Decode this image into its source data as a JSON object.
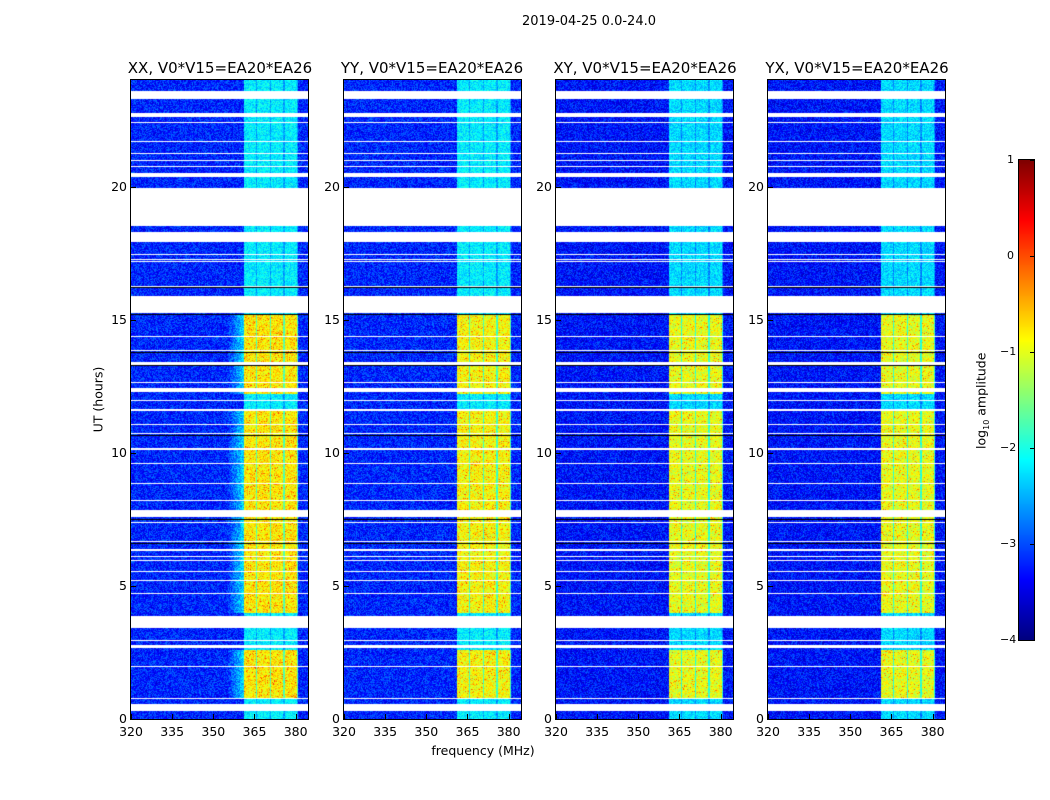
{
  "suptitle": "2019-04-25 0.0-24.0",
  "xlabel": "frequency (MHz)",
  "ylabel": "UT (hours)",
  "colorbar": {
    "label": "log",
    "label_sub": "10",
    "label_rest": " amplitude",
    "min": -4,
    "max": 1,
    "ticks": [
      "1",
      "0",
      "−1",
      "−2",
      "−3",
      "−4"
    ],
    "tick_values": [
      1,
      0,
      -1,
      -2,
      -3,
      -4
    ],
    "colormap": "jet"
  },
  "chart_data": [
    {
      "type": "heatmap",
      "title": "XX, V0*V15=EA20*EA26",
      "polarization": "XX",
      "xlim": [
        320,
        384.5
      ],
      "ylim": [
        0,
        24
      ],
      "xticks": [
        "320",
        "335",
        "350",
        "365",
        "380"
      ],
      "xtick_values": [
        320,
        335,
        350,
        365,
        380
      ],
      "yticks": [
        "0",
        "5",
        "10",
        "15",
        "20"
      ],
      "ytick_values": [
        0,
        5,
        10,
        15,
        20
      ],
      "background_level": -3.2,
      "strong_level": -0.8,
      "weak_level": -2.2,
      "ramp": true
    },
    {
      "type": "heatmap",
      "title": "YY, V0*V15=EA20*EA26",
      "polarization": "YY",
      "xlim": [
        320,
        384.5
      ],
      "ylim": [
        0,
        24
      ],
      "xticks": [
        "320",
        "335",
        "350",
        "365",
        "380"
      ],
      "xtick_values": [
        320,
        335,
        350,
        365,
        380
      ],
      "yticks": [
        "0",
        "5",
        "10",
        "15",
        "20"
      ],
      "ytick_values": [
        0,
        5,
        10,
        15,
        20
      ],
      "background_level": -3.2,
      "strong_level": -0.9,
      "weak_level": -2.2,
      "ramp": false
    },
    {
      "type": "heatmap",
      "title": "XY, V0*V15=EA20*EA26",
      "polarization": "XY",
      "xlim": [
        320,
        384.5
      ],
      "ylim": [
        0,
        24
      ],
      "xticks": [
        "320",
        "335",
        "350",
        "365",
        "380"
      ],
      "xtick_values": [
        320,
        335,
        350,
        365,
        380
      ],
      "yticks": [
        "0",
        "5",
        "10",
        "15",
        "20"
      ],
      "ytick_values": [
        0,
        5,
        10,
        15,
        20
      ],
      "background_level": -3.3,
      "strong_level": -1.0,
      "weak_level": -2.3,
      "ramp": false
    },
    {
      "type": "heatmap",
      "title": "YX, V0*V15=EA20*EA26",
      "polarization": "YX",
      "xlim": [
        320,
        384.5
      ],
      "ylim": [
        0,
        24
      ],
      "xticks": [
        "320",
        "335",
        "350",
        "365",
        "380"
      ],
      "xtick_values": [
        320,
        335,
        350,
        365,
        380
      ],
      "yticks": [
        "0",
        "5",
        "10",
        "15",
        "20"
      ],
      "ytick_values": [
        0,
        5,
        10,
        15,
        20
      ],
      "background_level": -3.3,
      "strong_level": -1.0,
      "weak_level": -2.3,
      "ramp": false
    }
  ],
  "shared": {
    "bright_subbands_mhz": [
      [
        361,
        365.5
      ],
      [
        366,
        370.5
      ],
      [
        371,
        375.5
      ],
      [
        376,
        380.5
      ]
    ],
    "strong_ut_ranges": [
      [
        0.8,
        2.6
      ],
      [
        4.0,
        11.6
      ],
      [
        12.2,
        15.2
      ]
    ],
    "flagged_ut_ranges": [
      [
        0.3,
        0.55
      ],
      [
        2.65,
        2.75
      ],
      [
        3.4,
        3.85
      ],
      [
        7.6,
        7.85
      ],
      [
        12.3,
        12.45
      ],
      [
        13.3,
        13.4
      ],
      [
        15.25,
        15.9
      ],
      [
        17.9,
        18.3
      ],
      [
        18.5,
        19.95
      ],
      [
        20.4,
        20.5
      ],
      [
        22.6,
        22.75
      ],
      [
        23.3,
        23.6
      ]
    ]
  }
}
